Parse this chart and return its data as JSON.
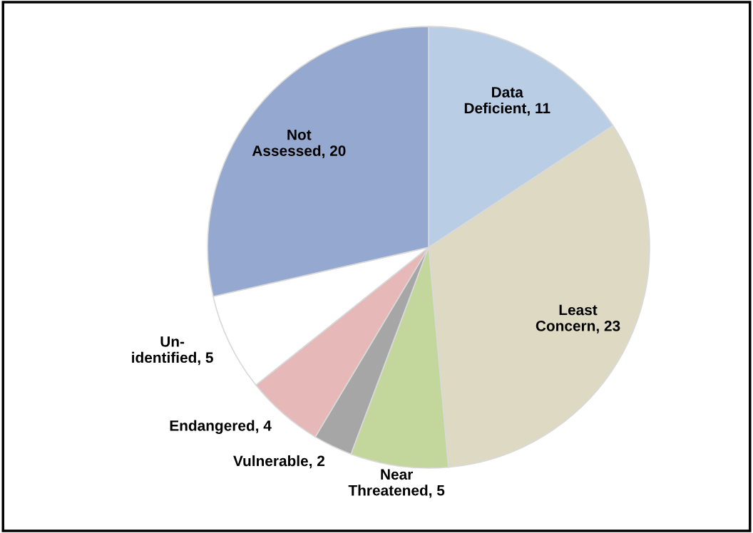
{
  "chart_data": {
    "type": "pie",
    "categories": [
      "Data\nDeficient, 11",
      "Least\nConcern, 23",
      "Near\nThreatened, 5",
      "Vulnerable, 2",
      "Endangered, 4",
      "Un-\nidentified, 5",
      "Not\nAssessed, 20"
    ],
    "values": [
      11,
      23,
      5,
      2,
      4,
      5,
      20
    ],
    "colors": [
      "#b9cde5",
      "#ddd9c3",
      "#c3d69b",
      "#a6a6a6",
      "#e6b9b8",
      "#ffffff",
      "#95a9d0"
    ],
    "legend": false
  }
}
